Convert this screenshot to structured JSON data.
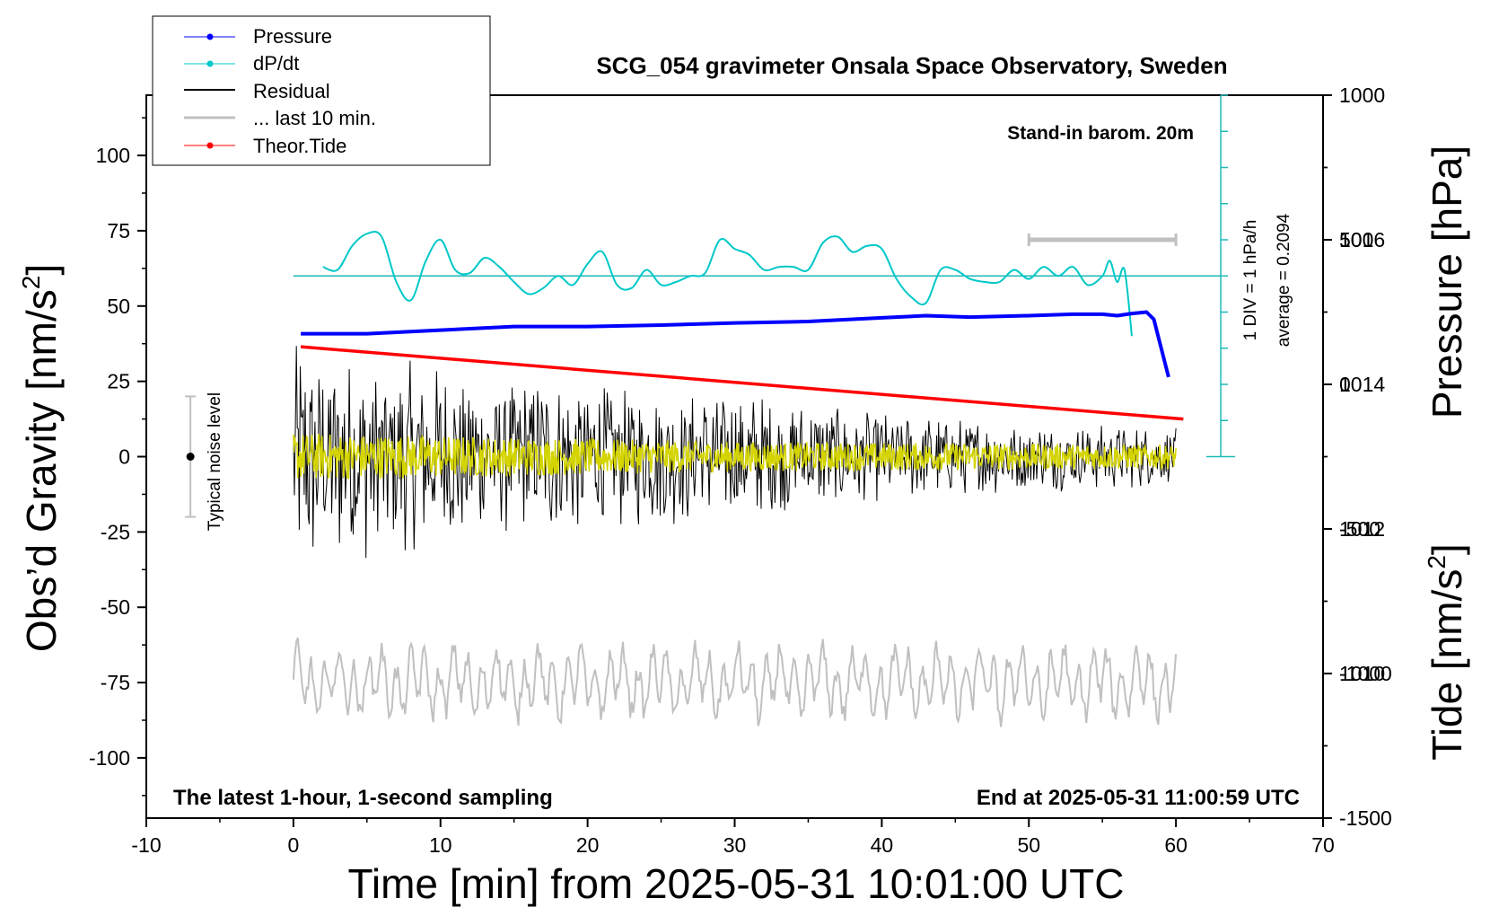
{
  "chart_data": {
    "type": "line",
    "title": "SCG_054 gravimeter Onsala Space Observatory, Sweden",
    "xlabel": "Time [min] from 2025-05-31 10:01:00 UTC",
    "ylabel_left_main": "Obs’d Gravity [nm/s",
    "ylabel_left_sup": "2",
    "ylabel_left_tail": "]",
    "ylabel_right_top": "Pressure [hPa]",
    "ylabel_right_bottom_main": "Tide [nm/s",
    "ylabel_right_bottom_sup": "2",
    "ylabel_right_bottom_tail": "]",
    "xlim": [
      -10,
      70
    ],
    "ylim_left": [
      -120,
      120
    ],
    "ylim_pressure": [
      1008,
      1018
    ],
    "ylim_tide": [
      -1500,
      1000
    ],
    "x_ticks": [
      "-10",
      "0",
      "10",
      "20",
      "30",
      "40",
      "50",
      "60",
      "70"
    ],
    "y_ticks_left": [
      "-100",
      "-75",
      "-50",
      "-25",
      "0",
      "25",
      "50",
      "75",
      "100"
    ],
    "y_ticks_pressure": [
      "1010",
      "1012",
      "1014",
      "1016"
    ],
    "y_ticks_tide": [
      "-1500",
      "-1000",
      "-500",
      "0",
      "500",
      "1000"
    ],
    "legend": [
      {
        "label": "Pressure",
        "color": "#0000ff",
        "marker": true
      },
      {
        "label": "dP/dt",
        "color": "#00c8c8",
        "marker": true
      },
      {
        "label": "Residual",
        "color": "#000000",
        "marker": false
      },
      {
        "label": "... last 10 min.",
        "color": "#c0c0c0",
        "marker": false
      },
      {
        "label": "Theor.Tide",
        "color": "#ff0000",
        "marker": true
      }
    ],
    "annotations": {
      "barometer": "Stand-in barom. 20m",
      "div_label": "1 DIV = 1 hPa/h",
      "average_label": "average = 0.2094",
      "noise_label": "Typical noise level",
      "bottom_left": "The latest 1-hour, 1-second sampling",
      "bottom_right": "End at 2025-05-31 11:00:59 UTC"
    },
    "noise_bar": {
      "x": -7,
      "low": -20,
      "high": 20,
      "center": 0
    },
    "last10_bar": {
      "x_start": 50,
      "x_end": 60
    },
    "series": [
      {
        "name": "Pressure",
        "axis": "pressure",
        "color": "#0000ff",
        "x": [
          0.5,
          5,
          10,
          15,
          20,
          25,
          30,
          35,
          40,
          43,
          46,
          50,
          53,
          55,
          56,
          57,
          58,
          58.5,
          59,
          59.5
        ],
        "y": [
          1014.7,
          1014.7,
          1014.75,
          1014.8,
          1014.8,
          1014.82,
          1014.85,
          1014.87,
          1014.92,
          1014.95,
          1014.93,
          1014.95,
          1014.97,
          1014.97,
          1014.95,
          1014.98,
          1015.0,
          1014.9,
          1014.5,
          1014.1
        ]
      },
      {
        "name": "dP/dt",
        "axis": "left",
        "color": "#00c8c8",
        "x": [
          2,
          3,
          4,
          5,
          6,
          7,
          8,
          9,
          10,
          11,
          12,
          13,
          14,
          15,
          16,
          17,
          18,
          19,
          20,
          21,
          22,
          23,
          24,
          25,
          26,
          27,
          28,
          29,
          30,
          31,
          32,
          33,
          34,
          35,
          36,
          37,
          38,
          39,
          40,
          41,
          42,
          43,
          44,
          45,
          46,
          47,
          48,
          49,
          50,
          51,
          52,
          53,
          54,
          55,
          55.5,
          56,
          56.5,
          57
        ],
        "y": [
          63,
          62,
          70,
          74,
          73,
          58,
          52,
          65,
          72,
          62,
          61,
          66,
          63,
          58,
          54,
          56,
          60,
          57,
          64,
          68,
          57,
          56,
          62,
          57,
          58,
          60,
          61,
          72,
          69,
          67,
          62,
          63,
          63,
          62,
          71,
          73,
          68,
          70,
          69,
          59,
          53,
          51,
          62,
          62,
          59,
          58,
          58,
          62,
          59,
          63,
          60,
          63,
          57,
          60,
          65,
          58,
          62,
          40
        ]
      },
      {
        "name": "Residual",
        "axis": "left",
        "color": "#000000",
        "x_range": [
          0,
          60
        ],
        "amplitude_envelope": [
          [
            0,
            40
          ],
          [
            10,
            30
          ],
          [
            20,
            25
          ],
          [
            30,
            22
          ],
          [
            40,
            15
          ],
          [
            50,
            12
          ],
          [
            60,
            10
          ]
        ]
      },
      {
        "name": "Residual (yellow detail)",
        "axis": "left",
        "color": "#d4d400",
        "x_range": [
          0,
          60
        ],
        "amplitude_envelope": [
          [
            0,
            8
          ],
          [
            30,
            5
          ],
          [
            60,
            4
          ]
        ]
      },
      {
        "name": "... last 10 min.",
        "axis": "left",
        "color": "#c0c0c0",
        "x_range": [
          0,
          60
        ],
        "offset": -75,
        "amplitude": 10
      },
      {
        "name": "Theor.Tide",
        "axis": "tide",
        "color": "#ff0000",
        "x": [
          0.5,
          60.5
        ],
        "y": [
          130,
          -120
        ]
      }
    ]
  }
}
